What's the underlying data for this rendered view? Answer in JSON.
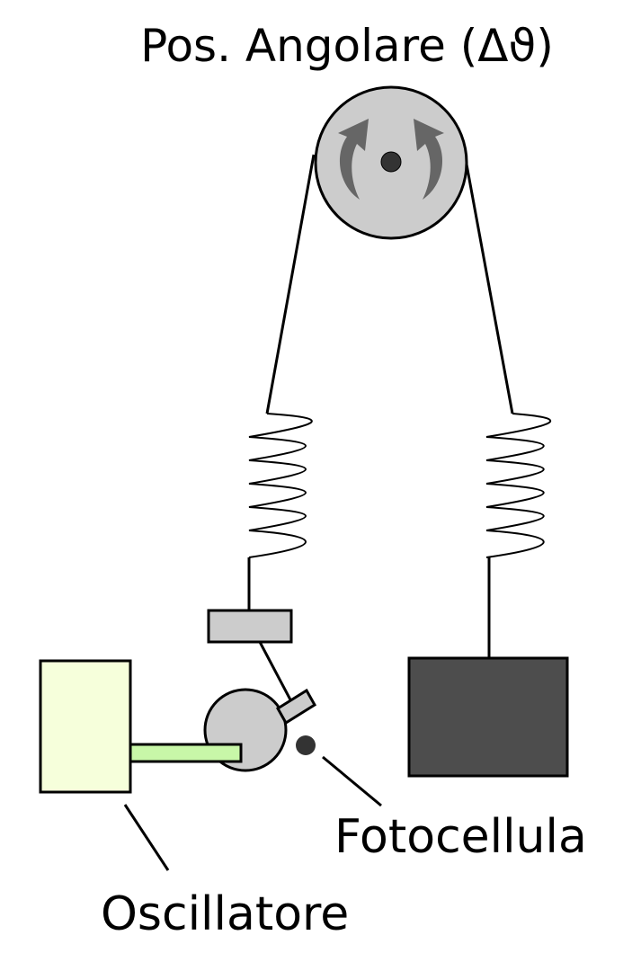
{
  "labels": {
    "angular_position": "Pos. Angolare (Δϑ)",
    "photocell": "Fotocellula",
    "oscillator": "Oscillatore"
  },
  "colors": {
    "pulley": "#cccccc",
    "arrows": "#666666",
    "axle": "#333333",
    "weight": "#4d4d4d",
    "oscillator_box": "#f6ffdb",
    "oscillator_arm": "#c8f7a8",
    "clamp": "#cccccc",
    "photocell": "#333333"
  },
  "icons": {
    "rotation": "double-curved-arrow-icon"
  }
}
